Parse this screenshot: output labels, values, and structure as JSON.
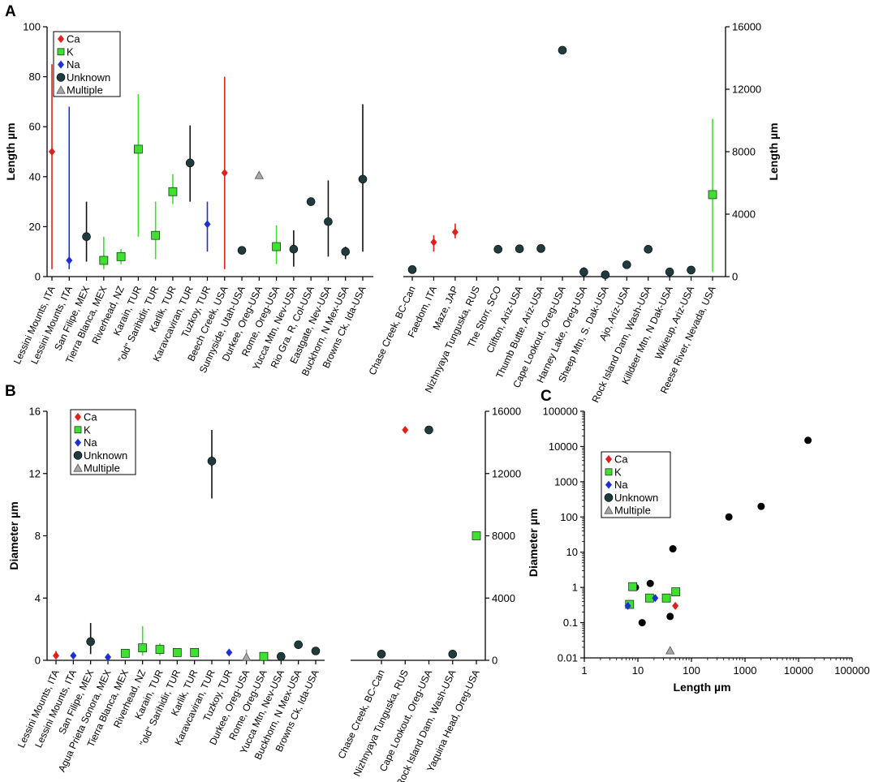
{
  "colors": {
    "Ca": "#e0201c",
    "K": "#40e030",
    "Na": "#1f2fd0",
    "Unknown": "#1f3b3e",
    "Multiple": "#a8a8a8",
    "err_unknown": "#111111"
  },
  "legend": {
    "entries": [
      "Ca",
      "K",
      "Na",
      "Unknown",
      "Multiple"
    ]
  },
  "chart_data": [
    {
      "panel": "A",
      "side": "left",
      "type": "scatter",
      "ylabel": "Length µm",
      "ylim": [
        0,
        100
      ],
      "yticks": [
        0,
        20,
        40,
        60,
        80,
        100
      ],
      "points": [
        {
          "label": "Lessini Mounts, ITA",
          "type": "Ca",
          "v": 50,
          "lo": 3,
          "hi": 85
        },
        {
          "label": "Lessini Mounts, ITA",
          "type": "Na",
          "v": 6.5,
          "lo": 3,
          "hi": 68
        },
        {
          "label": "San Filipe, MEX",
          "type": "Unknown",
          "v": 16,
          "lo": 6,
          "hi": 30
        },
        {
          "label": "Tierra Blanca, MEX",
          "type": "K",
          "v": 6.5,
          "lo": 3,
          "hi": 16
        },
        {
          "label": "Riverhead, NZ",
          "type": "K",
          "v": 8,
          "lo": 5,
          "hi": 11
        },
        {
          "label": "Karain, TUR",
          "type": "K",
          "v": 51,
          "lo": 16,
          "hi": 73
        },
        {
          "label": "\"old\" Sarihidir, TUR",
          "type": "K",
          "v": 16.5,
          "lo": 7,
          "hi": 30
        },
        {
          "label": "Karlik, TUR",
          "type": "K",
          "v": 34,
          "lo": 29,
          "hi": 41
        },
        {
          "label": "Karavcaviran, TUR",
          "type": "Unknown",
          "v": 45.5,
          "lo": 30,
          "hi": 60.5
        },
        {
          "label": "Tuzkoy, TUR",
          "type": "Na",
          "v": 21,
          "lo": 10,
          "hi": 30
        },
        {
          "label": "Beech Creek, USA",
          "type": "Ca",
          "v": 41.5,
          "lo": 3,
          "hi": 80
        },
        {
          "label": "Sunnyside, Utah-USA",
          "type": "Unknown",
          "v": 10.5
        },
        {
          "label": "Durkee, Oreg-USA",
          "type": "Multiple",
          "v": 40.5
        },
        {
          "label": "Rome, Oreg-USA",
          "type": "K",
          "v": 12,
          "lo": 5,
          "hi": 20.5
        },
        {
          "label": "Yucca Mtn, Nev-USA",
          "type": "Unknown",
          "v": 11,
          "lo": 4,
          "hi": 18.5
        },
        {
          "label": "Rio Gra. R, Col-USA",
          "type": "Unknown",
          "v": 30
        },
        {
          "label": "Eastgate, Nev-USA",
          "type": "Unknown",
          "v": 22,
          "lo": 8,
          "hi": 38.5
        },
        {
          "label": "Buckhorn, N Mex-USA",
          "type": "Unknown",
          "v": 10,
          "lo": 7,
          "hi": 12
        },
        {
          "label": "Browns Ck, Ida-USA",
          "type": "Unknown",
          "v": 39,
          "lo": 10,
          "hi": 69
        }
      ]
    },
    {
      "panel": "A",
      "side": "right",
      "type": "scatter",
      "ylabel": "Length µm",
      "ylim": [
        0,
        16000
      ],
      "yticks": [
        0,
        4000,
        8000,
        12000,
        16000
      ],
      "points": [
        {
          "label": "Chase Creek, BC-Can",
          "type": "Unknown",
          "v": 450
        },
        {
          "label": "Faedom, ITA",
          "type": "Ca",
          "v": 2200,
          "lo": 1600,
          "hi": 2650
        },
        {
          "label": "Maze, JAP",
          "type": "Ca",
          "v": 2850,
          "lo": 2450,
          "hi": 3400
        },
        {
          "label": "Nizhnyaya Tunguska, RUS",
          "type": "none",
          "v": null
        },
        {
          "label": "The Storr, SCO",
          "type": "Unknown",
          "v": 1750
        },
        {
          "label": "Clifton, Ariz-USA",
          "type": "Unknown",
          "v": 1780
        },
        {
          "label": "Thumb Butte, Ariz-USA",
          "type": "Unknown",
          "v": 1800
        },
        {
          "label": "Cape Lookout, Oreg-USA",
          "type": "Unknown",
          "v": 14500
        },
        {
          "label": "Harney Lake, Oreg-USA",
          "type": "Unknown",
          "v": 300,
          "lo": 50,
          "hi": 600
        },
        {
          "label": "Sheep Mtn, S. Dak-USA",
          "type": "Unknown",
          "v": 120
        },
        {
          "label": "Ajo, Ariz-USA",
          "type": "Unknown",
          "v": 760
        },
        {
          "label": "Rock Island Dam, Wash-USA",
          "type": "Unknown",
          "v": 1750
        },
        {
          "label": "Killdeer Mtn, N Dak-USA",
          "type": "Unknown",
          "v": 300
        },
        {
          "label": "Wikieup, Ariz-USA",
          "type": "Unknown",
          "v": 420
        },
        {
          "label": "Reese River, Nevada, USA",
          "type": "K",
          "v": 5250,
          "lo": 300,
          "hi": 10100
        }
      ]
    },
    {
      "panel": "B",
      "side": "left",
      "type": "scatter",
      "ylabel": "Diameter µm",
      "ylim": [
        0,
        16
      ],
      "yticks": [
        0,
        4,
        8,
        12,
        16
      ],
      "points": [
        {
          "label": "Lessini Mounts, ITA",
          "type": "Ca",
          "v": 0.3,
          "lo": 0.1,
          "hi": 0.6
        },
        {
          "label": "Lessini Mounts, ITA",
          "type": "Na",
          "v": 0.3
        },
        {
          "label": "San Filipe, MEX",
          "type": "Unknown",
          "v": 1.2,
          "lo": 0.4,
          "hi": 2.4
        },
        {
          "label": "Agua Prieta Sonora, MEX",
          "type": "Na",
          "v": 0.2
        },
        {
          "label": "Tierra Blanca, MEX",
          "type": "K",
          "v": 0.45
        },
        {
          "label": "Riverhead, NZ",
          "type": "K",
          "v": 0.8,
          "lo": 0.3,
          "hi": 2.2
        },
        {
          "label": "Karain, TUR",
          "type": "K",
          "v": 0.7,
          "lo": 0.3,
          "hi": 1.1
        },
        {
          "label": "\"old\" Sarihidir, TUR",
          "type": "K",
          "v": 0.5
        },
        {
          "label": "Karlik, TUR",
          "type": "K",
          "v": 0.5
        },
        {
          "label": "Karavcaviran, TUR",
          "type": "Unknown",
          "v": 12.8,
          "lo": 10.4,
          "hi": 14.8
        },
        {
          "label": "Tuzkoy, TUR",
          "type": "Na",
          "v": 0.5
        },
        {
          "label": "Durkee, Oreg-USA",
          "type": "Multiple",
          "v": 0.2,
          "lo": 0.1,
          "hi": 0.7
        },
        {
          "label": "Rome, Oreg-USA",
          "type": "K",
          "v": 0.25
        },
        {
          "label": "Yucca Mtn, Nev-USA",
          "type": "Unknown",
          "v": 0.25
        },
        {
          "label": "Buckhorn, N Mex-USA",
          "type": "Unknown",
          "v": 1.0
        },
        {
          "label": "Browns Ck, Ida-USA",
          "type": "Unknown",
          "v": 0.6
        }
      ]
    },
    {
      "panel": "B",
      "side": "right",
      "type": "scatter",
      "ylabel": "",
      "ylim": [
        0,
        16000
      ],
      "yticks": [
        0,
        4000,
        8000,
        12000,
        16000
      ],
      "points": [
        {
          "label": "Chase Creek, BC-Can",
          "type": "Unknown",
          "v": 400
        },
        {
          "label": "Nizhnyaya Tunguska, RUS",
          "type": "Ca",
          "v": 14800
        },
        {
          "label": "Cape Lookout, Oreg-USA",
          "type": "Unknown",
          "v": 14800
        },
        {
          "label": "Rock Island Dam, Wash-USA",
          "type": "Unknown",
          "v": 400
        },
        {
          "label": "Yaquina Head, Oreg-USA",
          "type": "K",
          "v": 8000
        }
      ]
    },
    {
      "panel": "C",
      "type": "scatter",
      "scale": "log-log",
      "xlabel": "Length µm",
      "ylabel": "Diameter µm",
      "xlim": [
        1,
        100000
      ],
      "ylim": [
        0.01,
        100000
      ],
      "xticks": [
        "1",
        "10",
        "100",
        "1000",
        "10000",
        "100000"
      ],
      "yticks": [
        "0.01",
        "0.1",
        "1",
        "10",
        "100",
        "1000",
        "10000",
        "100000"
      ],
      "points": [
        {
          "type": "Unknown",
          "x": 15000,
          "y": 15000
        },
        {
          "type": "Unknown",
          "x": 2000,
          "y": 200
        },
        {
          "type": "Unknown",
          "x": 500,
          "y": 100
        },
        {
          "type": "Unknown",
          "x": 45,
          "y": 12.5
        },
        {
          "type": "Unknown",
          "x": 17,
          "y": 1.3
        },
        {
          "type": "Unknown",
          "x": 9,
          "y": 1.0
        },
        {
          "type": "Unknown",
          "x": 12,
          "y": 0.1
        },
        {
          "type": "Unknown",
          "x": 40,
          "y": 0.15
        },
        {
          "type": "K",
          "x": 8,
          "y": 1.05
        },
        {
          "type": "K",
          "x": 7,
          "y": 0.33
        },
        {
          "type": "K",
          "x": 16.5,
          "y": 0.5
        },
        {
          "type": "K",
          "x": 34,
          "y": 0.5
        },
        {
          "type": "K",
          "x": 51,
          "y": 0.75
        },
        {
          "type": "Na",
          "x": 21,
          "y": 0.5
        },
        {
          "type": "Na",
          "x": 6.5,
          "y": 0.3
        },
        {
          "type": "Ca",
          "x": 50,
          "y": 0.3
        },
        {
          "type": "Multiple",
          "x": 40,
          "y": 0.016
        }
      ]
    }
  ],
  "panels": {
    "A": "A",
    "B": "B",
    "C": "C"
  }
}
